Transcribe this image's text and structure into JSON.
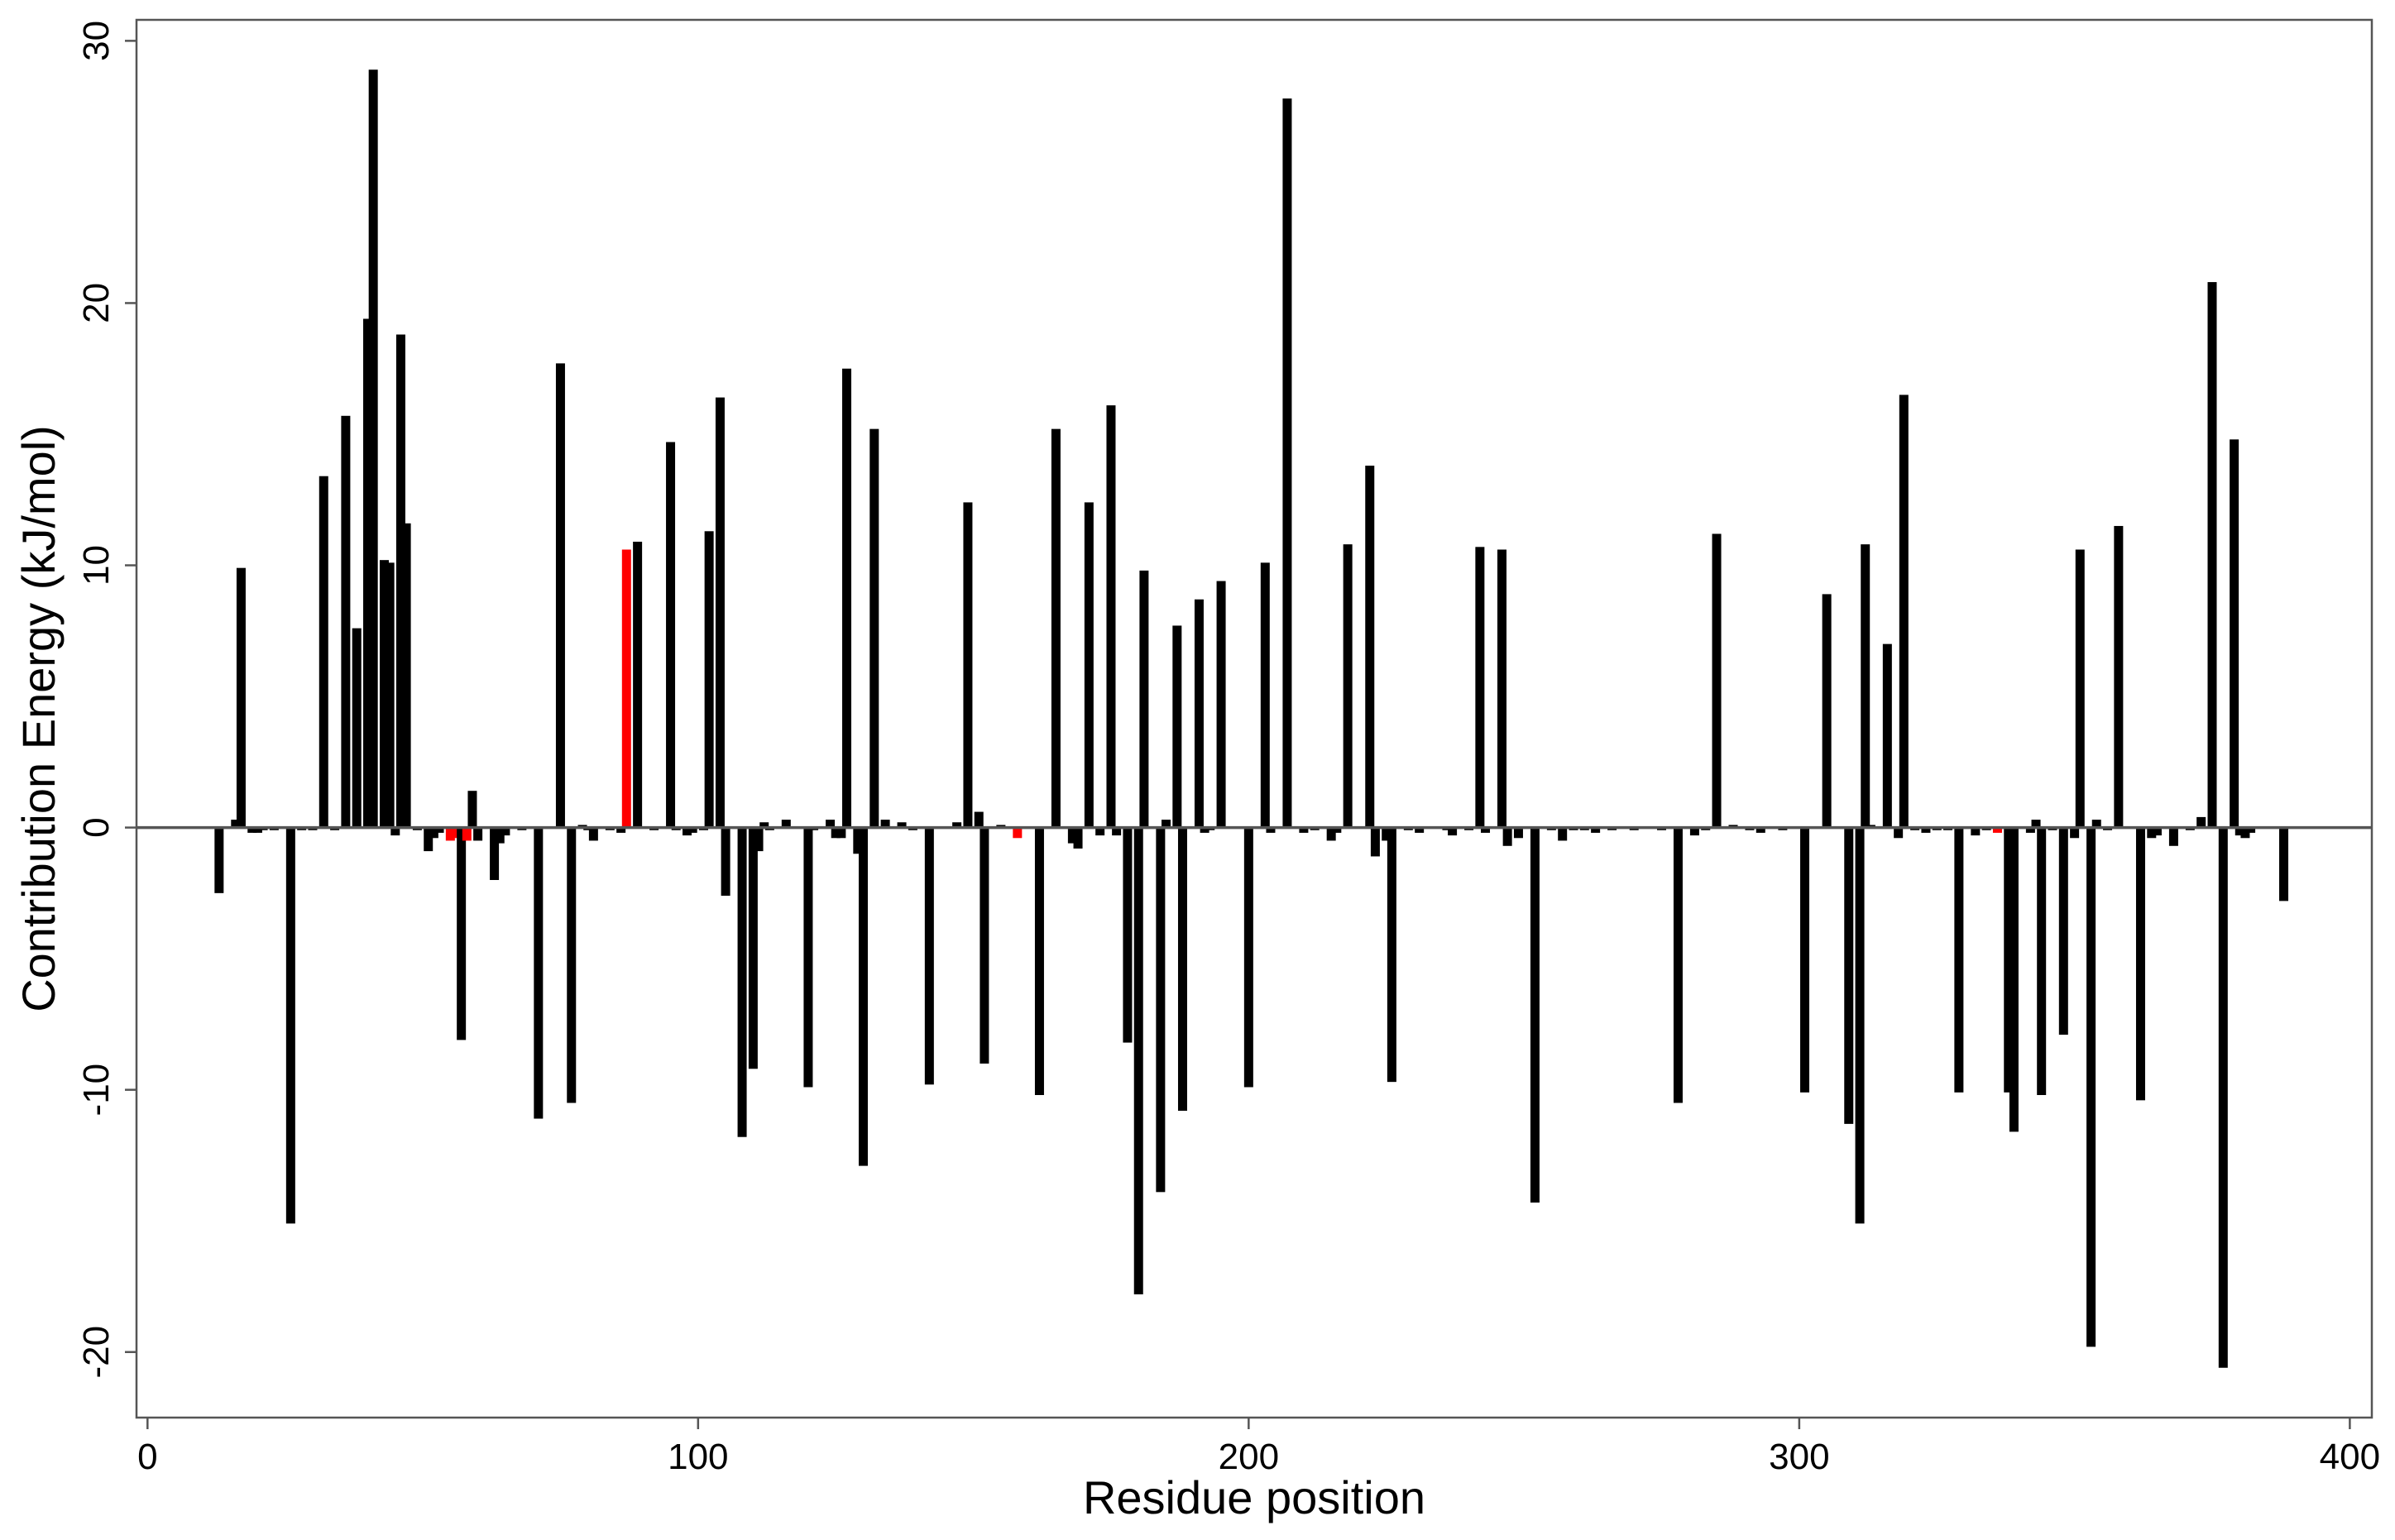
{
  "chart_data": {
    "type": "bar",
    "xlabel": "Residue position",
    "ylabel": "Contribution Energy (kJ/mol)",
    "xlim": [
      -2,
      404
    ],
    "ylim": [
      -22.5,
      30.8
    ],
    "xticks": [
      0,
      100,
      200,
      300,
      400
    ],
    "yticks": [
      -20,
      -10,
      0,
      10,
      20,
      30
    ],
    "grid": false,
    "legend": "none",
    "colors": {
      "default": "#000000",
      "highlight": "#ff0000",
      "zero_line": "#555555"
    },
    "series": [
      {
        "values": [
          {
            "x": 13,
            "y": -2.5
          },
          {
            "x": 16,
            "y": 0.3
          },
          {
            "x": 17,
            "y": 9.9
          },
          {
            "x": 19,
            "y": -0.2
          },
          {
            "x": 20,
            "y": -0.2
          },
          {
            "x": 21,
            "y": -0.1
          },
          {
            "x": 23,
            "y": -0.1
          },
          {
            "x": 26,
            "y": -15.1
          },
          {
            "x": 28,
            "y": -0.1
          },
          {
            "x": 30,
            "y": -0.1
          },
          {
            "x": 32,
            "y": 13.4
          },
          {
            "x": 34,
            "y": -0.1
          },
          {
            "x": 36,
            "y": 15.7
          },
          {
            "x": 38,
            "y": 7.6
          },
          {
            "x": 40,
            "y": 19.4
          },
          {
            "x": 41,
            "y": 28.9
          },
          {
            "x": 43,
            "y": 10.2
          },
          {
            "x": 44,
            "y": 10.1
          },
          {
            "x": 45,
            "y": -0.3
          },
          {
            "x": 46,
            "y": 18.8
          },
          {
            "x": 47,
            "y": 11.6
          },
          {
            "x": 49,
            "y": -0.1
          },
          {
            "x": 51,
            "y": -0.9
          },
          {
            "x": 52,
            "y": -0.4
          },
          {
            "x": 53,
            "y": -0.2
          },
          {
            "x": 55,
            "y": -0.5,
            "highlight": true
          },
          {
            "x": 56,
            "y": -0.4,
            "highlight": true
          },
          {
            "x": 57,
            "y": -8.1
          },
          {
            "x": 58,
            "y": -0.5,
            "highlight": true
          },
          {
            "x": 59,
            "y": 1.4
          },
          {
            "x": 60,
            "y": -0.5
          },
          {
            "x": 63,
            "y": -2.0
          },
          {
            "x": 64,
            "y": -0.6
          },
          {
            "x": 65,
            "y": -0.3
          },
          {
            "x": 68,
            "y": -0.1
          },
          {
            "x": 71,
            "y": -11.1
          },
          {
            "x": 75,
            "y": 17.7
          },
          {
            "x": 77,
            "y": -10.5
          },
          {
            "x": 79,
            "y": 0.1
          },
          {
            "x": 80,
            "y": -0.1
          },
          {
            "x": 81,
            "y": -0.5
          },
          {
            "x": 84,
            "y": -0.1
          },
          {
            "x": 86,
            "y": -0.2
          },
          {
            "x": 87,
            "y": 10.6,
            "highlight": true
          },
          {
            "x": 89,
            "y": 10.9
          },
          {
            "x": 92,
            "y": -0.1
          },
          {
            "x": 95,
            "y": 14.7
          },
          {
            "x": 96,
            "y": -0.1
          },
          {
            "x": 98,
            "y": -0.3
          },
          {
            "x": 99,
            "y": -0.2
          },
          {
            "x": 101,
            "y": -0.1
          },
          {
            "x": 102,
            "y": 11.3
          },
          {
            "x": 104,
            "y": 16.4
          },
          {
            "x": 105,
            "y": -2.6
          },
          {
            "x": 108,
            "y": -11.8
          },
          {
            "x": 110,
            "y": -9.2
          },
          {
            "x": 111,
            "y": -0.9
          },
          {
            "x": 112,
            "y": 0.2
          },
          {
            "x": 113,
            "y": -0.1
          },
          {
            "x": 116,
            "y": 0.3
          },
          {
            "x": 120,
            "y": -9.9
          },
          {
            "x": 121,
            "y": -0.1
          },
          {
            "x": 124,
            "y": 0.3
          },
          {
            "x": 125,
            "y": -0.4
          },
          {
            "x": 126,
            "y": -0.4
          },
          {
            "x": 127,
            "y": 17.5
          },
          {
            "x": 129,
            "y": -1.0
          },
          {
            "x": 130,
            "y": -12.9
          },
          {
            "x": 132,
            "y": 15.2
          },
          {
            "x": 134,
            "y": 0.3
          },
          {
            "x": 137,
            "y": 0.2
          },
          {
            "x": 139,
            "y": -0.1
          },
          {
            "x": 142,
            "y": -9.8
          },
          {
            "x": 147,
            "y": 0.2
          },
          {
            "x": 149,
            "y": 12.4
          },
          {
            "x": 151,
            "y": 0.6
          },
          {
            "x": 152,
            "y": -9.0
          },
          {
            "x": 155,
            "y": 0.1
          },
          {
            "x": 158,
            "y": -0.4,
            "highlight": true
          },
          {
            "x": 162,
            "y": -10.2
          },
          {
            "x": 165,
            "y": 15.2
          },
          {
            "x": 168,
            "y": -0.6
          },
          {
            "x": 169,
            "y": -0.8
          },
          {
            "x": 171,
            "y": 12.4
          },
          {
            "x": 173,
            "y": -0.3
          },
          {
            "x": 175,
            "y": 16.1
          },
          {
            "x": 176,
            "y": -0.3
          },
          {
            "x": 178,
            "y": -8.2
          },
          {
            "x": 180,
            "y": -17.8
          },
          {
            "x": 181,
            "y": 9.8
          },
          {
            "x": 184,
            "y": -13.9
          },
          {
            "x": 185,
            "y": 0.3
          },
          {
            "x": 187,
            "y": 7.7
          },
          {
            "x": 188,
            "y": -10.8
          },
          {
            "x": 191,
            "y": 8.7
          },
          {
            "x": 192,
            "y": -0.2
          },
          {
            "x": 193,
            "y": -0.1
          },
          {
            "x": 195,
            "y": 9.4
          },
          {
            "x": 200,
            "y": -9.9
          },
          {
            "x": 203,
            "y": 10.1
          },
          {
            "x": 204,
            "y": -0.2
          },
          {
            "x": 207,
            "y": 27.8
          },
          {
            "x": 210,
            "y": -0.2
          },
          {
            "x": 212,
            "y": -0.1
          },
          {
            "x": 215,
            "y": -0.5
          },
          {
            "x": 216,
            "y": -0.2
          },
          {
            "x": 218,
            "y": 10.8
          },
          {
            "x": 222,
            "y": 13.8
          },
          {
            "x": 223,
            "y": -1.1
          },
          {
            "x": 225,
            "y": -0.5
          },
          {
            "x": 226,
            "y": -9.7
          },
          {
            "x": 229,
            "y": -0.1
          },
          {
            "x": 231,
            "y": -0.2
          },
          {
            "x": 236,
            "y": -0.1
          },
          {
            "x": 237,
            "y": -0.3
          },
          {
            "x": 240,
            "y": -0.1
          },
          {
            "x": 242,
            "y": 10.7
          },
          {
            "x": 243,
            "y": -0.2
          },
          {
            "x": 246,
            "y": 10.6
          },
          {
            "x": 247,
            "y": -0.7
          },
          {
            "x": 249,
            "y": -0.4
          },
          {
            "x": 252,
            "y": -14.3
          },
          {
            "x": 255,
            "y": -0.1
          },
          {
            "x": 257,
            "y": -0.5
          },
          {
            "x": 259,
            "y": -0.1
          },
          {
            "x": 261,
            "y": -0.1
          },
          {
            "x": 263,
            "y": -0.2
          },
          {
            "x": 266,
            "y": -0.1
          },
          {
            "x": 270,
            "y": -0.1
          },
          {
            "x": 275,
            "y": -0.1
          },
          {
            "x": 278,
            "y": -10.5
          },
          {
            "x": 281,
            "y": -0.3
          },
          {
            "x": 283,
            "y": -0.1
          },
          {
            "x": 285,
            "y": 11.2
          },
          {
            "x": 288,
            "y": 0.1
          },
          {
            "x": 291,
            "y": -0.1
          },
          {
            "x": 293,
            "y": -0.2
          },
          {
            "x": 297,
            "y": -0.1
          },
          {
            "x": 301,
            "y": -10.1
          },
          {
            "x": 305,
            "y": 8.9
          },
          {
            "x": 309,
            "y": -11.3
          },
          {
            "x": 311,
            "y": -15.1
          },
          {
            "x": 312,
            "y": 10.8
          },
          {
            "x": 313,
            "y": 0.1
          },
          {
            "x": 316,
            "y": 7.0
          },
          {
            "x": 318,
            "y": -0.4
          },
          {
            "x": 319,
            "y": 16.5
          },
          {
            "x": 321,
            "y": -0.1
          },
          {
            "x": 323,
            "y": -0.2
          },
          {
            "x": 325,
            "y": -0.1
          },
          {
            "x": 327,
            "y": -0.1
          },
          {
            "x": 329,
            "y": -10.1
          },
          {
            "x": 332,
            "y": -0.3
          },
          {
            "x": 334,
            "y": -0.1
          },
          {
            "x": 336,
            "y": -0.2,
            "highlight": true
          },
          {
            "x": 338,
            "y": -10.1
          },
          {
            "x": 339,
            "y": -11.6
          },
          {
            "x": 342,
            "y": -0.2
          },
          {
            "x": 343,
            "y": 0.3
          },
          {
            "x": 344,
            "y": -10.2
          },
          {
            "x": 346,
            "y": -0.1
          },
          {
            "x": 348,
            "y": -7.9
          },
          {
            "x": 350,
            "y": -0.4
          },
          {
            "x": 351,
            "y": 10.6
          },
          {
            "x": 353,
            "y": -19.8
          },
          {
            "x": 354,
            "y": 0.3
          },
          {
            "x": 356,
            "y": -0.1
          },
          {
            "x": 358,
            "y": 11.5
          },
          {
            "x": 362,
            "y": -10.4
          },
          {
            "x": 364,
            "y": -0.4
          },
          {
            "x": 365,
            "y": -0.3
          },
          {
            "x": 368,
            "y": -0.7
          },
          {
            "x": 371,
            "y": -0.1
          },
          {
            "x": 373,
            "y": 0.4
          },
          {
            "x": 375,
            "y": 20.8
          },
          {
            "x": 377,
            "y": -20.6
          },
          {
            "x": 379,
            "y": 14.8
          },
          {
            "x": 380,
            "y": -0.3
          },
          {
            "x": 381,
            "y": -0.4
          },
          {
            "x": 382,
            "y": -0.2
          },
          {
            "x": 388,
            "y": -2.8
          }
        ]
      }
    ]
  }
}
